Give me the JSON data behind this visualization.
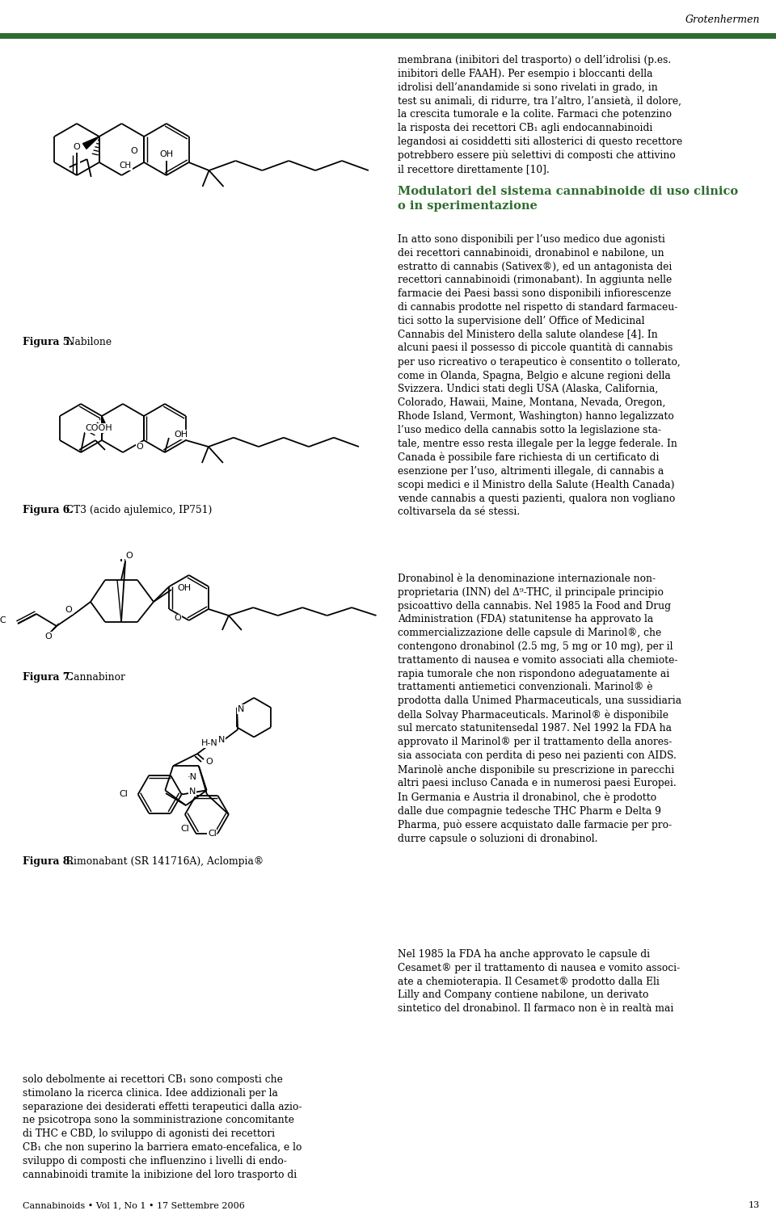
{
  "header_text": "Grotenhermen",
  "green_bar_color": "#2e6b2e",
  "footer_text": "Cannabinoids • Vol 1, No 1 • 17 Settembre 2006",
  "footer_page": "13",
  "background_color": "#ffffff",
  "right_para1": "membrana (inibitori del trasporto) o dell’idrolisi (p.es.\ninibitori delle FAAH). Per esempio i bloccanti della\nidrolisi dell’anandamide si sono rivelati in grado, in\ntest su animali, di ridurre, tra l’altro, l’ansietà, il dolore,\nla crescita tumorale e la colite. Farmaci che potenzino\nla risposta dei recettori CB₁ agli endocannabinoidi\nlegandosi ai cosiddetti siti allosterici di questo recettore\npotrebbero essere più selettivi di composti che attivino\nil recettore direttamente [10].",
  "right_heading": "Modulatori del sistema cannabinoide di uso clinico\no in sperimentazione",
  "right_para2": "In atto sono disponibili per l’uso medico due agonisti\ndei recettori cannabinoidi, dronabinol e nabilone, un\nestratto di cannabis (Sativex®), ed un antagonista dei\nrecettori cannabinoidi (rimonabant). In aggiunta nelle\nfarmacie dei Paesi bassi sono disponibili infiorescenze\ndi cannabis prodotte nel rispetto di standard farmaceu-\ntici sotto la supervisione dell’ Office of Medicinal\nCannabis del Ministero della salute olandese [4]. In\nalcuni paesi il possesso di piccole quantità di cannabis\nper uso ricreativo o terapeutico è consentito o tollerato,\ncome in Olanda, Spagna, Belgio e alcune regioni della\nSvizzera. Undici stati degli USA (Alaska, California,\nColorado, Hawaii, Maine, Montana, Nevada, Oregon,\nRhode Island, Vermont, Washington) hanno legalizzato\nl’uso medico della cannabis sotto la legislazione sta-\ntale, mentre esso resta illegale per la legge federale. In\nCanada è possibile fare richiesta di un certificato di\nesenzione per l’uso, altrimenti illegale, di cannabis a\nscopi medici e il Ministro della Salute (Health Canada)\nvende cannabis a questi pazienti, qualora non vogliano\ncoltivarsela da sé stessi.",
  "right_para3": "Dronabinol è la denominazione internazionale non-\nproprietaria (INN) del Δ⁹-THC, il principale principio\npsicoattivo della cannabis. Nel 1985 la Food and Drug\nAdministration (FDA) statunitense ha approvato la\ncommercializzazione delle capsule di Marinol®, che\ncontengono dronabinol (2.5 mg, 5 mg or 10 mg), per il\ntrattamento di nausea e vomito associati alla chemiote-\nrapia tumorale che non rispondono adeguatamente ai\ntrattamenti antiemetici convenzionali. Marinol® è\nprodotta dalla Unimed Pharmaceuticals, una sussidiaria\ndella Solvay Pharmaceuticals. Marinol® è disponibile\nsul mercato statunitensedal 1987. Nel 1992 la FDA ha\napprovato il Marinol® per il trattamento della anores-\nsia associata con perdita di peso nei pazienti con AIDS.\nMarinolè anche disponibile su prescrizione in parecchi\naltri paesi incluso Canada e in numerosi paesi Europei.\nIn Germania e Austria il dronabinol, che è prodotto\ndalle due compagnie tedesche THC Pharm e Delta 9\nPharma, può essere acquistato dalle farmacie per pro-\ndurre capsule o soluzioni di dronabinol.",
  "right_para4": "Nel 1985 la FDA ha anche approvato le capsule di\nCesamet® per il trattamento di nausea e vomito associ-\nate a chemioterapia. Il Cesamet® prodotto dalla Eli\nLilly and Company contiene nabilone, un derivato\nsintetico del dronabinol. Il farmaco non è in realtà mai",
  "left_bottom_text": "solo debolmente ai recettori CB₁ sono composti che\nstimolano la ricerca clinica. Idee addizionali per la\nseparazione dei desiderati effetti terapeutici dalla azio-\nne psicotropa sono la somministrazione concomitante\ndi THC e CBD, lo sviluppo di agonisti dei recettori\nCB₁ che non superino la barriera emato-encefalica, e lo\nsviluppo di composti che influenzino i livelli di endo-\ncannabinoidi tramite la inibizione del loro trasporto di",
  "fig5_label": "Figura 5.",
  "fig5_text": " Nabilone",
  "fig6_label": "Figura 6.",
  "fig6_text": " CT3 (acido ajulemico, IP751)",
  "fig7_label": "Figura 7.",
  "fig7_text": " Cannabinor",
  "fig8_label": "Figura 8.",
  "fig8_text": " Rimonabant (SR 141716A), Aclompia®"
}
